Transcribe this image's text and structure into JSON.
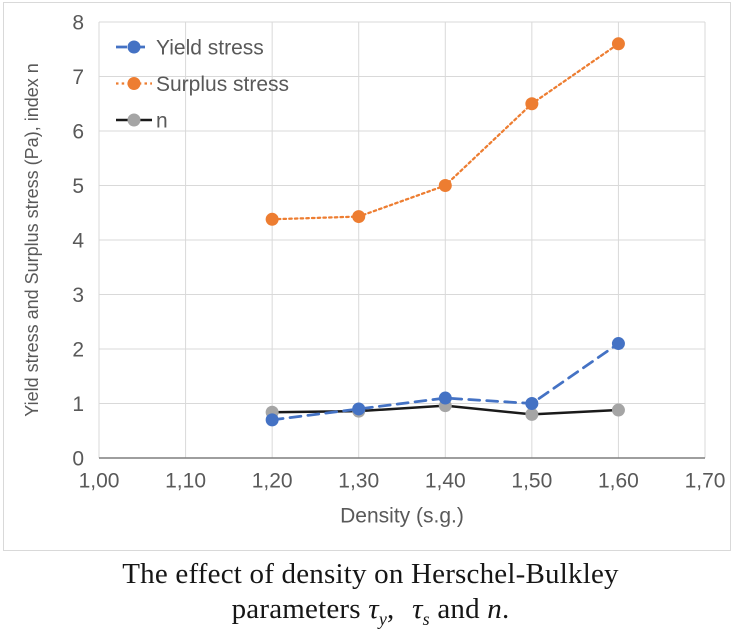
{
  "chart_data": {
    "type": "line",
    "title": "",
    "xlabel": "Density (s.g.)",
    "ylabel": "Yield stress and Surplus stress (Pa), index n",
    "xlim": [
      1.0,
      1.7
    ],
    "ylim": [
      0,
      8
    ],
    "x_ticks": [
      1.0,
      1.1,
      1.2,
      1.3,
      1.4,
      1.5,
      1.6,
      1.7
    ],
    "x_tick_labels": [
      "1,00",
      "1,10",
      "1,20",
      "1,30",
      "1,40",
      "1,50",
      "1,60",
      "1,70"
    ],
    "y_ticks": [
      0,
      1,
      2,
      3,
      4,
      5,
      6,
      7,
      8
    ],
    "y_tick_labels": [
      "0",
      "1",
      "2",
      "3",
      "4",
      "5",
      "6",
      "7",
      "8"
    ],
    "grid": true,
    "legend_position": "top-left-inside",
    "x": [
      1.2,
      1.3,
      1.4,
      1.5,
      1.6
    ],
    "series": [
      {
        "name": "Yield stress",
        "values": [
          0.7,
          0.9,
          1.1,
          1.0,
          2.1
        ],
        "color": "#4472C4",
        "marker_color": "#4472C4",
        "line_style": "dashed"
      },
      {
        "name": "Surplus stress",
        "values": [
          4.38,
          4.43,
          5.0,
          6.5,
          7.6
        ],
        "color": "#ED7D31",
        "marker_color": "#ED7D31",
        "line_style": "dotted"
      },
      {
        "name": "n",
        "values": [
          0.84,
          0.86,
          0.96,
          0.8,
          0.88
        ],
        "color": "#1A1A1A",
        "marker_color": "#A5A5A5",
        "line_style": "solid"
      }
    ]
  },
  "style": {
    "gridline_color": "#D9D9D9",
    "axis_line_color": "#7F7F7F",
    "tick_text_color": "#595959",
    "legend_text_color": "#595959",
    "frame_border_color": "#D9D9D9",
    "background": "#FFFFFF"
  },
  "caption": {
    "line1": "The effect of density on Herschel-Bulkley",
    "parameters_word": "parameters",
    "tau": "τ",
    "sub_y": "y",
    "comma": ",",
    "tau2": "τ",
    "sub_s": "s",
    "and_word": "and",
    "n_word": "n",
    "period": "."
  }
}
